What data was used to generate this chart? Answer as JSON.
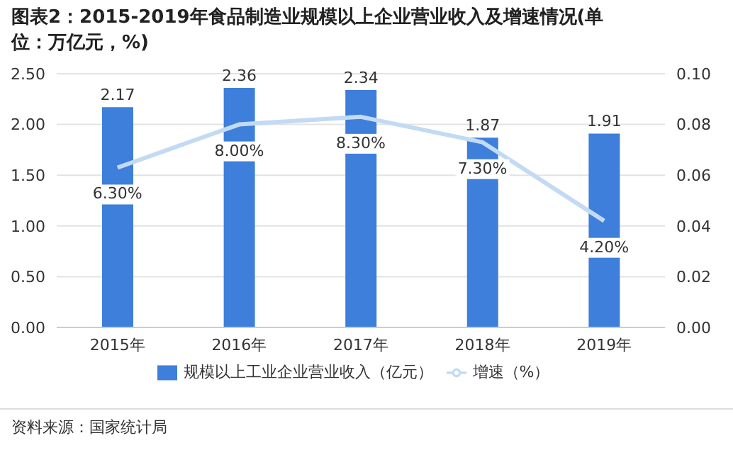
{
  "chart_data": {
    "type": "bar",
    "title": "图表2：2015-2019年食品制造业规模以上企业营业收入及增速情况(单位：万亿元，%)",
    "categories": [
      "2015年",
      "2016年",
      "2017年",
      "2018年",
      "2019年"
    ],
    "series": [
      {
        "name": "规模以上工业企业营业收入（亿元）",
        "color": "#3d7fda",
        "values": [
          2.17,
          2.36,
          2.34,
          1.87,
          1.91
        ],
        "value_labels": [
          "2.17",
          "2.36",
          "2.34",
          "1.87",
          "1.91"
        ]
      },
      {
        "name": "增速（%）",
        "type": "line",
        "axis": "y2",
        "color": "#c3daf3",
        "values": [
          0.063,
          0.08,
          0.083,
          0.073,
          0.042
        ],
        "value_labels": [
          "6.30%",
          "8.00%",
          "8.30%",
          "7.30%",
          "4.20%"
        ]
      }
    ],
    "ylim": [
      0,
      2.5
    ],
    "yticks": [
      {
        "value": 0,
        "label": "0.00"
      },
      {
        "value": 0.5,
        "label": "0.50"
      },
      {
        "value": 1,
        "label": "1.00"
      },
      {
        "value": 1.5,
        "label": "1.50"
      },
      {
        "value": 2,
        "label": "2.00"
      },
      {
        "value": 2.5,
        "label": "2.50"
      }
    ],
    "y2lim": [
      0,
      0.1
    ],
    "y2ticks": [
      {
        "value": 0,
        "label": "0.00"
      },
      {
        "value": 0.02,
        "label": "0.02"
      },
      {
        "value": 0.04,
        "label": "0.04"
      },
      {
        "value": 0.06,
        "label": "0.06"
      },
      {
        "value": 0.08,
        "label": "0.08"
      },
      {
        "value": 0.1,
        "label": "0.10"
      }
    ],
    "grid": "y",
    "legend": "bottom",
    "marker": "none",
    "line_style": "solid",
    "annotations": [
      "资料来源：国家统计局"
    ]
  }
}
